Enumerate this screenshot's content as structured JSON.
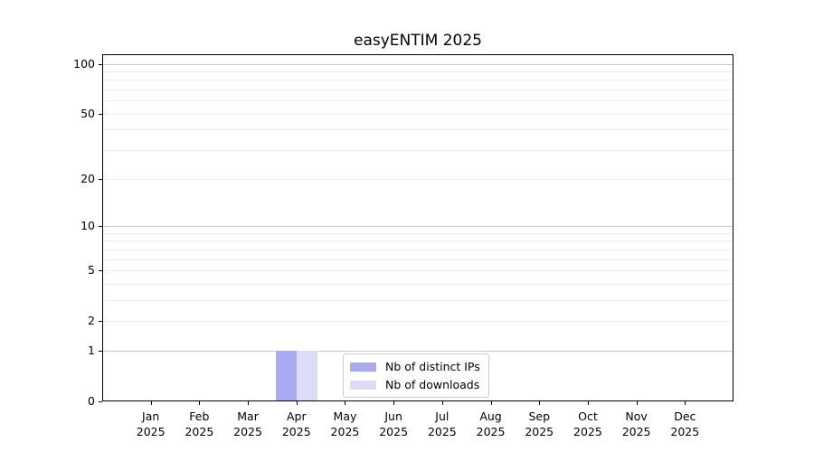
{
  "title": "easyENTIM 2025",
  "chart_data": {
    "type": "bar",
    "title": "easyENTIM 2025",
    "categories": [
      "Jan",
      "Feb",
      "Mar",
      "Apr",
      "May",
      "Jun",
      "Jul",
      "Aug",
      "Sep",
      "Oct",
      "Nov",
      "Dec"
    ],
    "x_year": "2025",
    "series": [
      {
        "name": "Nb of distinct IPs",
        "color": "#aaaaf0",
        "values": [
          0,
          0,
          0,
          1,
          0,
          0,
          0,
          0,
          0,
          0,
          0,
          0
        ]
      },
      {
        "name": "Nb of downloads",
        "color": "#dcdcf8",
        "values": [
          0,
          0,
          0,
          1,
          0,
          0,
          0,
          0,
          0,
          0,
          0,
          0
        ]
      }
    ],
    "yscale": "log1p",
    "ylim": [
      0,
      114
    ],
    "ytick_values": [
      0,
      1,
      2,
      5,
      10,
      20,
      50,
      100
    ],
    "ygrid_major": [
      1,
      10,
      100
    ],
    "ygrid_minor": [
      2,
      3,
      4,
      5,
      6,
      7,
      8,
      9,
      20,
      30,
      40,
      50,
      60,
      70,
      80,
      90
    ],
    "grid": "both",
    "legend_position": "lower center"
  },
  "colors": {
    "background": "#ffffff",
    "spine": "#000000",
    "grid_major": "#c9c9c9",
    "grid_minor": "#ededed",
    "bar_distinct_ips": "#aaaaf0",
    "bar_downloads": "#dcdcf8",
    "legend_border": "#cccccc",
    "legend_background": "#ffffff",
    "text": "#000000"
  }
}
